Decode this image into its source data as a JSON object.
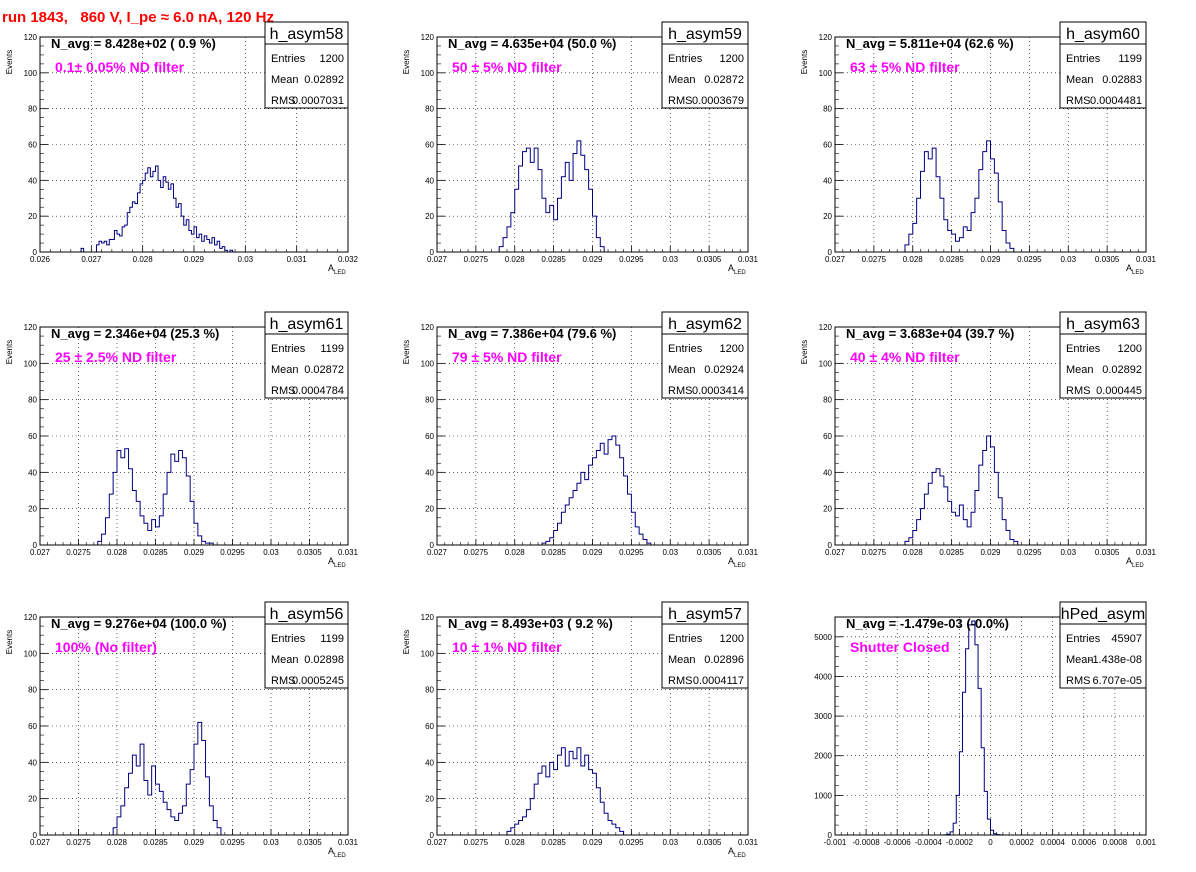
{
  "page_title": "run 1843,   860 V, I_pe ≈ 6.0 nA, 120 Hz",
  "colors": {
    "title": "#ff0000",
    "annotation": "#ff00ff",
    "histogram": "#000080",
    "grid": "#000000"
  },
  "chart_data": [
    {
      "type": "histogram",
      "name": "h_asym58",
      "navg": "N_avg = 8.428e+02 ( 0.9 %)",
      "note": "0.1± 0.05% ND filter",
      "stats": [
        {
          "label": "Entries",
          "value": "1200"
        },
        {
          "label": "Mean",
          "value": "0.02892"
        },
        {
          "label": "RMS",
          "value": "0.0007031"
        }
      ],
      "ylabel": "Events",
      "xlabel": "A",
      "xlabel_sub": "LED",
      "xlim": [
        0.026,
        0.032
      ],
      "ylim": [
        0,
        120
      ],
      "xticks": [
        0.026,
        0.027,
        0.028,
        0.029,
        0.03,
        0.031,
        0.032
      ],
      "xtick_labels": [
        "0.026",
        "0.027",
        "0.028",
        "0.029",
        "0.03",
        "0.031",
        "0.032"
      ],
      "yticks": [
        0,
        20,
        40,
        60,
        80,
        100,
        120
      ],
      "ytick_labels": [
        "0",
        "20",
        "40",
        "60",
        "80",
        "100",
        "120"
      ],
      "bin_edges_start": 0.0268,
      "bin_width": 5e-05,
      "counts": [
        2,
        0,
        0,
        0,
        0,
        0,
        4,
        6,
        5,
        6,
        4,
        7,
        7,
        12,
        10,
        9,
        14,
        15,
        22,
        25,
        28,
        27,
        33,
        38,
        40,
        44,
        47,
        42,
        45,
        48,
        40,
        36,
        42,
        39,
        35,
        38,
        30,
        25,
        27,
        20,
        15,
        18,
        12,
        10,
        14,
        8,
        10,
        6,
        9,
        7,
        5,
        8,
        4,
        6,
        2,
        3,
        1,
        0,
        1
      ],
      "grid": true
    },
    {
      "type": "histogram",
      "name": "h_asym59",
      "navg": "N_avg = 4.635e+04 (50.0 %)",
      "note": "50 ± 5% ND filter",
      "stats": [
        {
          "label": "Entries",
          "value": "1200"
        },
        {
          "label": "Mean",
          "value": "0.02872"
        },
        {
          "label": "RMS",
          "value": "0.0003679"
        }
      ],
      "ylabel": "Events",
      "xlabel": "A",
      "xlabel_sub": "LED",
      "xlim": [
        0.027,
        0.031
      ],
      "ylim": [
        0,
        120
      ],
      "xticks": [
        0.027,
        0.0275,
        0.028,
        0.0285,
        0.029,
        0.0295,
        0.03,
        0.0305,
        0.031
      ],
      "xtick_labels": [
        "0.027",
        "0.0275",
        "0.028",
        "0.0285",
        "0.029",
        "0.0295",
        "0.03",
        "0.0305",
        "0.031"
      ],
      "yticks": [
        0,
        20,
        40,
        60,
        80,
        100,
        120
      ],
      "ytick_labels": [
        "0",
        "20",
        "40",
        "60",
        "80",
        "100",
        "120"
      ],
      "bin_edges_start": 0.0278,
      "bin_width": 5e-05,
      "counts": [
        3,
        8,
        14,
        22,
        35,
        48,
        56,
        58,
        50,
        58,
        46,
        30,
        22,
        26,
        18,
        30,
        42,
        50,
        40,
        55,
        62,
        54,
        46,
        35,
        20,
        8,
        3
      ],
      "grid": true
    },
    {
      "type": "histogram",
      "name": "h_asym60",
      "navg": "N_avg = 5.811e+04 (62.6 %)",
      "note": "63 ± 5% ND filter",
      "stats": [
        {
          "label": "Entries",
          "value": "1199"
        },
        {
          "label": "Mean",
          "value": "0.02883"
        },
        {
          "label": "RMS",
          "value": "0.0004481"
        }
      ],
      "ylabel": "Events",
      "xlabel": "A",
      "xlabel_sub": "LED",
      "xlim": [
        0.027,
        0.031
      ],
      "ylim": [
        0,
        120
      ],
      "xticks": [
        0.027,
        0.0275,
        0.028,
        0.0285,
        0.029,
        0.0295,
        0.03,
        0.0305,
        0.031
      ],
      "xtick_labels": [
        "0.027",
        "0.0275",
        "0.028",
        "0.0285",
        "0.029",
        "0.0295",
        "0.03",
        "0.0305",
        "0.031"
      ],
      "yticks": [
        0,
        20,
        40,
        60,
        80,
        100,
        120
      ],
      "ytick_labels": [
        "0",
        "20",
        "40",
        "60",
        "80",
        "100",
        "120"
      ],
      "bin_edges_start": 0.0279,
      "bin_width": 5e-05,
      "counts": [
        4,
        10,
        16,
        30,
        45,
        56,
        52,
        58,
        42,
        30,
        18,
        12,
        10,
        6,
        8,
        14,
        12,
        22,
        30,
        46,
        56,
        62,
        52,
        44,
        28,
        12,
        5,
        2
      ],
      "grid": true
    },
    {
      "type": "histogram",
      "name": "h_asym61",
      "navg": "N_avg = 2.346e+04 (25.3 %)",
      "note": "25 ± 2.5% ND filter",
      "stats": [
        {
          "label": "Entries",
          "value": "1199"
        },
        {
          "label": "Mean",
          "value": "0.02872"
        },
        {
          "label": "RMS",
          "value": "0.0004784"
        }
      ],
      "ylabel": "Events",
      "xlabel": "A",
      "xlabel_sub": "LED",
      "xlim": [
        0.027,
        0.031
      ],
      "ylim": [
        0,
        120
      ],
      "xticks": [
        0.027,
        0.0275,
        0.028,
        0.0285,
        0.029,
        0.0295,
        0.03,
        0.0305,
        0.031
      ],
      "xtick_labels": [
        "0.027",
        "0.0275",
        "0.028",
        "0.0285",
        "0.029",
        "0.0295",
        "0.03",
        "0.0305",
        "0.031"
      ],
      "yticks": [
        0,
        20,
        40,
        60,
        80,
        100,
        120
      ],
      "ytick_labels": [
        "0",
        "20",
        "40",
        "60",
        "80",
        "100",
        "120"
      ],
      "bin_edges_start": 0.02775,
      "bin_width": 5e-05,
      "counts": [
        2,
        6,
        15,
        28,
        40,
        52,
        48,
        53,
        42,
        30,
        24,
        16,
        12,
        8,
        14,
        10,
        16,
        28,
        40,
        50,
        46,
        52,
        48,
        38,
        24,
        12,
        5,
        2,
        1,
        1
      ],
      "grid": true
    },
    {
      "type": "histogram",
      "name": "h_asym62",
      "navg": "N_avg = 7.386e+04 (79.6 %)",
      "note": "79 ± 5% ND filter",
      "stats": [
        {
          "label": "Entries",
          "value": "1200"
        },
        {
          "label": "Mean",
          "value": "0.02924"
        },
        {
          "label": "RMS",
          "value": "0.0003414"
        }
      ],
      "ylabel": "Events",
      "xlabel": "A",
      "xlabel_sub": "LED",
      "xlim": [
        0.027,
        0.031
      ],
      "ylim": [
        0,
        120
      ],
      "xticks": [
        0.027,
        0.0275,
        0.028,
        0.0285,
        0.029,
        0.0295,
        0.03,
        0.0305,
        0.031
      ],
      "xtick_labels": [
        "0.027",
        "0.0275",
        "0.028",
        "0.0285",
        "0.029",
        "0.0295",
        "0.03",
        "0.0305",
        "0.031"
      ],
      "yticks": [
        0,
        20,
        40,
        60,
        80,
        100,
        120
      ],
      "ytick_labels": [
        "0",
        "20",
        "40",
        "60",
        "80",
        "100",
        "120"
      ],
      "bin_edges_start": 0.02835,
      "bin_width": 5e-05,
      "counts": [
        1,
        2,
        4,
        8,
        12,
        18,
        22,
        26,
        30,
        34,
        40,
        36,
        44,
        48,
        52,
        56,
        50,
        58,
        60,
        55,
        48,
        38,
        28,
        18,
        10,
        6,
        3,
        1
      ],
      "grid": true
    },
    {
      "type": "histogram",
      "name": "h_asym63",
      "navg": "N_avg = 3.683e+04 (39.7 %)",
      "note": "40 ± 4% ND filter",
      "stats": [
        {
          "label": "Entries",
          "value": "1200"
        },
        {
          "label": "Mean",
          "value": "0.02892"
        },
        {
          "label": "RMS",
          "value": "0.000445"
        }
      ],
      "ylabel": "Events",
      "xlabel": "A",
      "xlabel_sub": "LED",
      "xlim": [
        0.027,
        0.031
      ],
      "ylim": [
        0,
        120
      ],
      "xticks": [
        0.027,
        0.0275,
        0.028,
        0.0285,
        0.029,
        0.0295,
        0.03,
        0.0305,
        0.031
      ],
      "xtick_labels": [
        "0.027",
        "0.0275",
        "0.028",
        "0.0285",
        "0.029",
        "0.0295",
        "0.03",
        "0.0305",
        "0.031"
      ],
      "yticks": [
        0,
        20,
        40,
        60,
        80,
        100,
        120
      ],
      "ytick_labels": [
        "0",
        "20",
        "40",
        "60",
        "80",
        "100",
        "120"
      ],
      "bin_edges_start": 0.0279,
      "bin_width": 5e-05,
      "counts": [
        2,
        4,
        8,
        14,
        20,
        28,
        34,
        40,
        42,
        38,
        32,
        24,
        18,
        16,
        22,
        14,
        10,
        18,
        30,
        44,
        52,
        60,
        54,
        40,
        26,
        14,
        8,
        3,
        2
      ],
      "grid": true
    },
    {
      "type": "histogram",
      "name": "h_asym56",
      "navg": "N_avg = 9.276e+04 (100.0 %)",
      "note": "100% (No filter)",
      "stats": [
        {
          "label": "Entries",
          "value": "1199"
        },
        {
          "label": "Mean",
          "value": "0.02898"
        },
        {
          "label": "RMS",
          "value": "0.0005245"
        }
      ],
      "ylabel": "Events",
      "xlabel": "A",
      "xlabel_sub": "LED",
      "xlim": [
        0.027,
        0.031
      ],
      "ylim": [
        0,
        120
      ],
      "xticks": [
        0.027,
        0.0275,
        0.028,
        0.0285,
        0.029,
        0.0295,
        0.03,
        0.0305,
        0.031
      ],
      "xtick_labels": [
        "0.027",
        "0.0275",
        "0.028",
        "0.0285",
        "0.029",
        "0.0295",
        "0.03",
        "0.0305",
        "0.031"
      ],
      "yticks": [
        0,
        20,
        40,
        60,
        80,
        100,
        120
      ],
      "ytick_labels": [
        "0",
        "20",
        "40",
        "60",
        "80",
        "100",
        "120"
      ],
      "bin_edges_start": 0.02795,
      "bin_width": 5e-05,
      "counts": [
        4,
        10,
        16,
        26,
        34,
        44,
        38,
        50,
        30,
        22,
        38,
        28,
        24,
        18,
        14,
        10,
        8,
        12,
        16,
        28,
        36,
        50,
        62,
        52,
        32,
        16,
        8,
        4
      ],
      "grid": true
    },
    {
      "type": "histogram",
      "name": "h_asym57",
      "navg": "N_avg = 8.493e+03 ( 9.2 %)",
      "note": "10 ± 1% ND filter",
      "stats": [
        {
          "label": "Entries",
          "value": "1200"
        },
        {
          "label": "Mean",
          "value": "0.02896"
        },
        {
          "label": "RMS",
          "value": "0.0004117"
        }
      ],
      "ylabel": "Events",
      "xlabel": "A",
      "xlabel_sub": "LED",
      "xlim": [
        0.027,
        0.031
      ],
      "ylim": [
        0,
        120
      ],
      "xticks": [
        0.027,
        0.0275,
        0.028,
        0.0285,
        0.029,
        0.0295,
        0.03,
        0.0305,
        0.031
      ],
      "xtick_labels": [
        "0.027",
        "0.0275",
        "0.028",
        "0.0285",
        "0.029",
        "0.0295",
        "0.03",
        "0.0305",
        "0.031"
      ],
      "yticks": [
        0,
        20,
        40,
        60,
        80,
        100,
        120
      ],
      "ytick_labels": [
        "0",
        "20",
        "40",
        "60",
        "80",
        "100",
        "120"
      ],
      "bin_edges_start": 0.0279,
      "bin_width": 5e-05,
      "counts": [
        2,
        4,
        6,
        8,
        10,
        14,
        20,
        28,
        34,
        38,
        32,
        40,
        36,
        44,
        48,
        38,
        46,
        42,
        48,
        38,
        44,
        36,
        34,
        26,
        18,
        12,
        8,
        6,
        4,
        2
      ],
      "grid": true
    },
    {
      "type": "histogram",
      "name": "hPed_asym",
      "navg": "N_avg = -1.479e-03 (-0.0%)",
      "note": "Shutter Closed",
      "stats": [
        {
          "label": "Entries",
          "value": "45907"
        },
        {
          "label": "Mean",
          "value": "-1.438e-08"
        },
        {
          "label": "RMS",
          "value": "6.707e-05"
        }
      ],
      "ylabel": "",
      "xlabel": "",
      "xlabel_sub": "",
      "xlim": [
        -0.001,
        0.001
      ],
      "ylim": [
        0,
        5500
      ],
      "xticks": [
        -0.001,
        -0.0008,
        -0.0006,
        -0.0004,
        -0.0002,
        0,
        0.0002,
        0.0004,
        0.0006,
        0.0008,
        0.001
      ],
      "xtick_labels": [
        "-0.001",
        "-0.0008",
        "-0.0006",
        "-0.0004",
        "-0.0002",
        "0",
        "0.0002",
        "0.0004",
        "0.0006",
        "0.0008",
        "0.001"
      ],
      "yticks": [
        0,
        1000,
        2000,
        3000,
        4000,
        5000
      ],
      "ytick_labels": [
        "0",
        "1000",
        "2000",
        "3000",
        "4000",
        "5000"
      ],
      "bin_edges_start": -0.0003,
      "bin_width": 2e-05,
      "counts": [
        5,
        20,
        80,
        300,
        1000,
        2100,
        3600,
        4700,
        5300,
        5400,
        4800,
        3700,
        2200,
        1100,
        400,
        120,
        30,
        8,
        2,
        1,
        0
      ],
      "grid": true
    }
  ]
}
